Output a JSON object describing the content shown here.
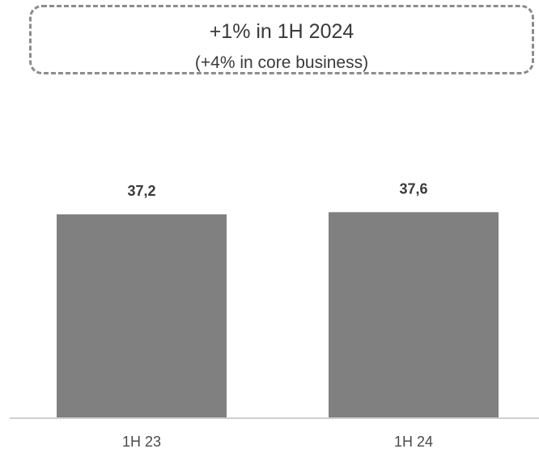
{
  "callout": {
    "headline": "+1% in 1H 2024",
    "sub": "(+4% in core business)"
  },
  "chart_data": {
    "type": "bar",
    "categories": [
      "1H 23",
      "1H 24"
    ],
    "values": [
      37.2,
      37.6
    ],
    "value_labels": [
      "37,2",
      "37,6"
    ],
    "title": "",
    "xlabel": "",
    "ylabel": "",
    "grid": false,
    "bar_color": "#808080"
  }
}
